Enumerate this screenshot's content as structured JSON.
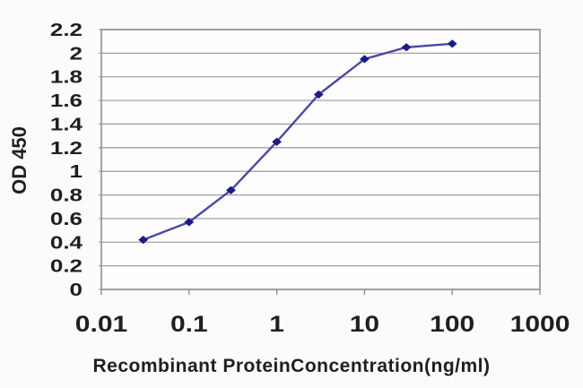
{
  "colors": {
    "line": "#4a4aa0",
    "marker": "#1c1c86",
    "grid": "#a3a3a3",
    "axis": "#8f8f8f",
    "text": "#1f1f1f",
    "background": "#fbfbfb",
    "plot_background": "#fdfdfd"
  },
  "chart_data": {
    "type": "line",
    "title": "",
    "xlabel": "Recombinant ProteinConcentration(ng/ml)",
    "ylabel": "OD 450",
    "x_scale": "log",
    "y_scale": "linear",
    "xlim": [
      0.01,
      1000
    ],
    "ylim": [
      0,
      2.2
    ],
    "grid": "horizontal",
    "legend": "none",
    "marker": "diamond",
    "x": [
      0.03,
      0.1,
      0.3,
      1,
      3,
      10,
      30,
      100
    ],
    "y": [
      0.42,
      0.57,
      0.84,
      1.25,
      1.65,
      1.95,
      2.05,
      2.08
    ],
    "x_ticks": [
      0.01,
      0.1,
      1,
      10,
      100,
      1000
    ],
    "x_tick_labels": [
      "0.01",
      "0.1",
      "1",
      "10",
      "100",
      "1000"
    ],
    "y_ticks": [
      0,
      0.2,
      0.4,
      0.6,
      0.8,
      1,
      1.2,
      1.4,
      1.6,
      1.8,
      2,
      2.2
    ],
    "y_tick_labels": [
      "0",
      "0.2",
      "0.4",
      "0.6",
      "0.8",
      "1",
      "1.2",
      "1.4",
      "1.6",
      "1.8",
      "2",
      "2.2"
    ]
  }
}
